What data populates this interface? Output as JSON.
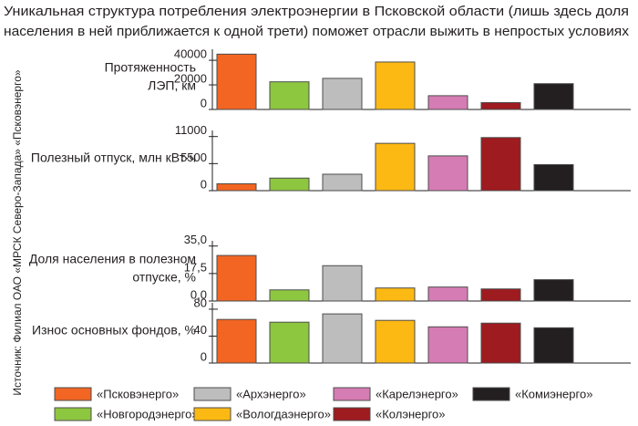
{
  "title": [
    "Уникальная структура потребления электроэнергии в Псковской области (лишь здесь доля",
    "населения в ней приближается к одной трети) поможет отрасли выжить в непростых условиях"
  ],
  "source": "Источник: Филиал ОАО «МРСК Северо-Запада» «Псковэнерго»",
  "legend": [
    {
      "name": "«Псковэнерго»",
      "color": "#f26522"
    },
    {
      "name": "«Новгородэнерго»",
      "color": "#8dc63f"
    },
    {
      "name": "«Архэнерго»",
      "color": "#bdbdbd"
    },
    {
      "name": "«Вологдаэнерго»",
      "color": "#fdb913"
    },
    {
      "name": "«Карелэнерго»",
      "color": "#d67cb4"
    },
    {
      "name": "«Колэнерго»",
      "color": "#9e1b20"
    },
    {
      "name": "«Комиэнерго»",
      "color": "#231f20"
    }
  ],
  "chart_data": [
    {
      "type": "bar",
      "label": [
        "Протяженность",
        "ЛЭП, км"
      ],
      "values": [
        45000,
        22500,
        25300,
        38600,
        11200,
        5600,
        21000
      ],
      "ylim": [
        0,
        46000
      ],
      "yticks": [
        0,
        20000,
        40000
      ]
    },
    {
      "type": "bar",
      "label": [
        "Полезный отпуск, млн кВт·ч"
      ],
      "values": [
        1400,
        2550,
        3340,
        9620,
        7070,
        10800,
        5300
      ],
      "ylim": [
        0,
        11500
      ],
      "yticks": [
        0,
        5500,
        11000
      ]
    },
    {
      "type": "bar",
      "label": [
        "Доля населения в полезном",
        "отпуске, %"
      ],
      "values": [
        29,
        7.1,
        22.5,
        8.3,
        8.9,
        7.7,
        13.6
      ],
      "ylim": [
        0,
        36
      ],
      "yticks": [
        {
          "value": 0,
          "label": "0,0"
        },
        {
          "value": 17.5,
          "label": "17,5"
        },
        {
          "value": 35,
          "label": "35,0"
        }
      ]
    },
    {
      "type": "bar",
      "label": [
        "Износ основных фондов, %"
      ],
      "values": [
        64.8,
        60.7,
        73,
        63.4,
        53.8,
        59.3,
        52.4
      ],
      "ylim": [
        0,
        84
      ],
      "yticks": [
        0,
        40,
        80
      ]
    }
  ]
}
